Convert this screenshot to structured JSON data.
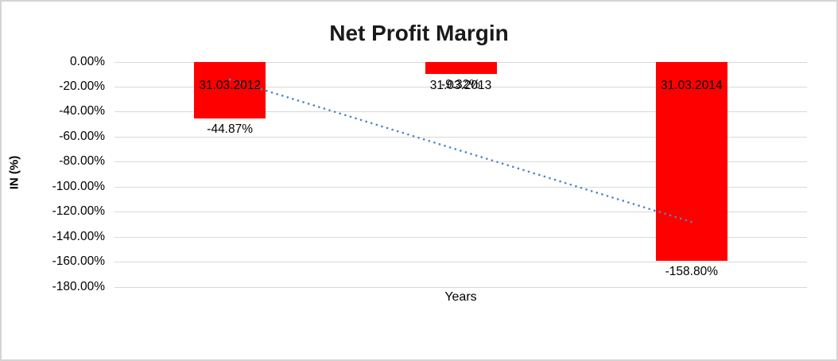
{
  "window": {
    "background": "#ffffff",
    "frame_border_color": "#d4d4d4"
  },
  "chart_data": {
    "type": "bar",
    "title": "Net Profit Margin",
    "xlabel": "Years",
    "ylabel": "IN (%)",
    "categories": [
      "31.03.2012",
      "31.03.2013",
      "31.03.2014"
    ],
    "series": [
      {
        "name": "Net Profit Margin",
        "values": [
          -44.87,
          -9.32,
          -158.8
        ]
      }
    ],
    "data_labels": [
      "-44.87%",
      "-9.32%",
      "-158.80%"
    ],
    "y_ticks": [
      {
        "label": "0.00%",
        "value": 0
      },
      {
        "label": "-20.00%",
        "value": -20
      },
      {
        "label": "-40.00%",
        "value": -40
      },
      {
        "label": "-60.00%",
        "value": -60
      },
      {
        "label": "-80.00%",
        "value": -80
      },
      {
        "label": "-100.00%",
        "value": -100
      },
      {
        "label": "-120.00%",
        "value": -120
      },
      {
        "label": "-140.00%",
        "value": -140
      },
      {
        "label": "-160.00%",
        "value": -160
      },
      {
        "label": "-180.00%",
        "value": -180
      }
    ],
    "ylim": [
      -180,
      0
    ],
    "grid": true,
    "legend": "none",
    "bar_color": "#fe0000",
    "gridline_color": "#d9d9d9",
    "trendline": {
      "type": "linear",
      "style": "dotted",
      "color": "#4f86c6",
      "points": [
        [
          0,
          -14.0
        ],
        [
          2,
          -127.9
        ]
      ]
    }
  }
}
